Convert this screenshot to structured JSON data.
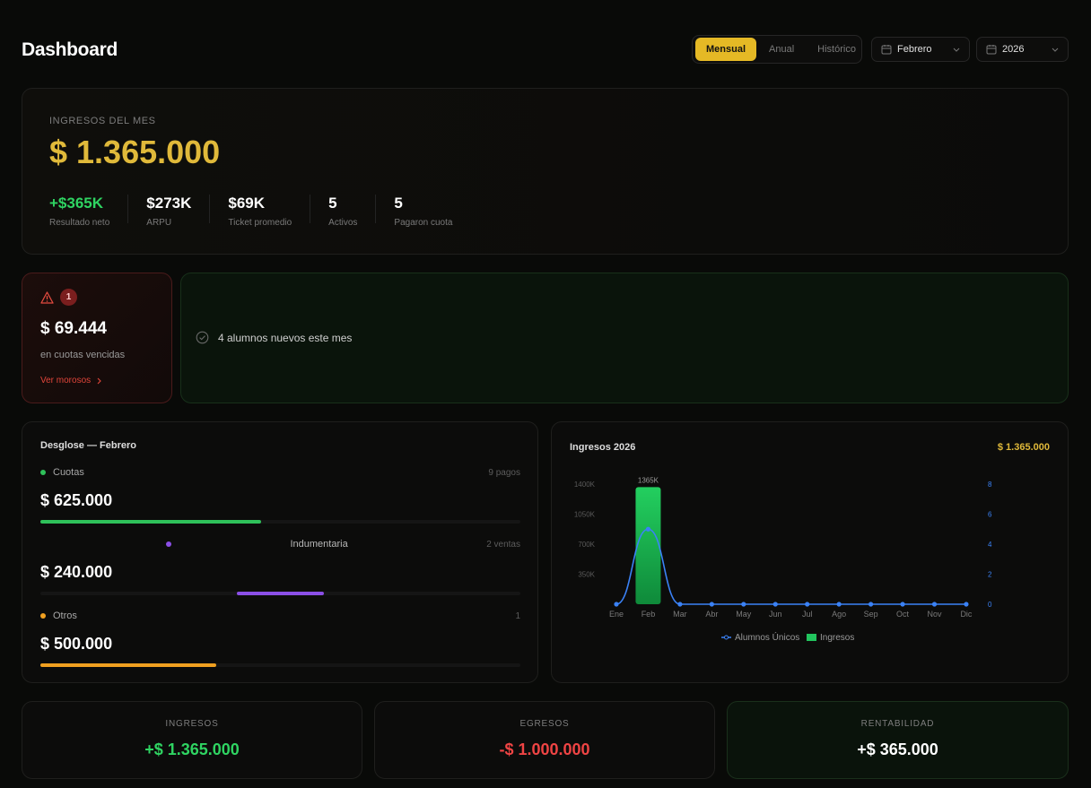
{
  "header": {
    "title": "Dashboard",
    "period_tabs": [
      "Mensual",
      "Anual",
      "Histórico"
    ],
    "active_tab": "Mensual",
    "month_select": "Febrero",
    "year_select": "2026"
  },
  "hero": {
    "label": "INGRESOS DEL MES",
    "value": "$ 1.365.000",
    "kpis": [
      {
        "value": "+$365K",
        "label": "Resultado neto"
      },
      {
        "value": "$273K",
        "label": "ARPU"
      },
      {
        "value": "$69K",
        "label": "Ticket promedio"
      },
      {
        "value": "5",
        "label": "Activos"
      },
      {
        "value": "5",
        "label": "Pagaron cuota"
      }
    ]
  },
  "alert": {
    "badge": "1",
    "value": "$ 69.444",
    "subtitle": "en cuotas vencidas",
    "link": "Ver morosos"
  },
  "info": {
    "message": "4 alumnos nuevos este mes"
  },
  "breakdown": {
    "title": "Desglose — Febrero",
    "items": [
      {
        "name": "Cuotas",
        "count": "9 pagos",
        "value": "$ 625.000",
        "color": "#2fc15a",
        "fill_start": 0.0,
        "fill_end": 0.46
      },
      {
        "name": "Indumentaria",
        "count": "2 ventas",
        "value": "$ 240.000",
        "color": "#8b4fe6",
        "fill_start": 0.41,
        "fill_end": 0.59
      },
      {
        "name": "Otros",
        "count": "1",
        "value": "$ 500.000",
        "color": "#f0a020",
        "fill_start": 0.0,
        "fill_end": 0.367
      }
    ]
  },
  "chart": {
    "title": "Ingresos 2026",
    "total": "$ 1.365.000",
    "legend": [
      "Alumnos Únicos",
      "Ingresos"
    ]
  },
  "chart_data": {
    "type": "bar",
    "categories": [
      "Ene",
      "Feb",
      "Mar",
      "Abr",
      "May",
      "Jun",
      "Jul",
      "Ago",
      "Sep",
      "Oct",
      "Nov",
      "Dic"
    ],
    "series": [
      {
        "name": "Ingresos",
        "type": "bar",
        "axis": "left",
        "values": [
          0,
          1365,
          0,
          0,
          0,
          0,
          0,
          0,
          0,
          0,
          0,
          0
        ],
        "color": "#22c55e"
      },
      {
        "name": "Alumnos Únicos",
        "type": "line",
        "axis": "right",
        "values": [
          0,
          5,
          0,
          0,
          0,
          0,
          0,
          0,
          0,
          0,
          0,
          0
        ],
        "color": "#3b82f6"
      }
    ],
    "data_labels": [
      {
        "index": 1,
        "text": "1365K"
      }
    ],
    "left_ticks": [
      "350K",
      "700K",
      "1050K",
      "1400K"
    ],
    "left_tick_values": [
      350,
      700,
      1050,
      1400
    ],
    "right_ticks": [
      "0",
      "2",
      "4",
      "6",
      "8"
    ],
    "right_tick_values": [
      0,
      2,
      4,
      6,
      8
    ],
    "ylim": [
      0,
      1400
    ],
    "y2lim": [
      0,
      8
    ],
    "legend_position": "bottom"
  },
  "totals": [
    {
      "label": "INGRESOS",
      "value": "+$ 1.365.000",
      "color": "#2fd462"
    },
    {
      "label": "EGRESOS",
      "value": "-$ 1.000.000",
      "color": "#ef4444"
    },
    {
      "label": "RENTABILIDAD",
      "value": "+$ 365.000",
      "color": "#ffffff"
    }
  ]
}
